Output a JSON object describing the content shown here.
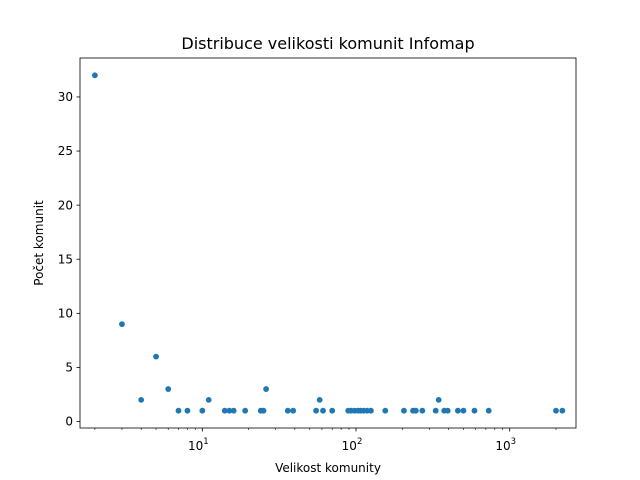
{
  "chart_data": {
    "type": "scatter",
    "title": "Distribuce velikosti komunit Infomap",
    "xlabel": "Velikost komunity",
    "ylabel": "Počet komunit",
    "xscale": "log",
    "xlim": [
      1.6,
      2700
    ],
    "ylim": [
      -0.6,
      33.6
    ],
    "yticks": [
      0,
      5,
      10,
      15,
      20,
      25,
      30
    ],
    "xticks": [
      {
        "value": 10,
        "base": "10",
        "exp": "1"
      },
      {
        "value": 100,
        "base": "10",
        "exp": "2"
      },
      {
        "value": 1000,
        "base": "10",
        "exp": "3"
      }
    ],
    "grid": false,
    "legend": "none",
    "marker_color": "#1f77b4",
    "points": [
      {
        "x": 2,
        "y": 32
      },
      {
        "x": 3,
        "y": 9
      },
      {
        "x": 4,
        "y": 2
      },
      {
        "x": 5,
        "y": 6
      },
      {
        "x": 6,
        "y": 3
      },
      {
        "x": 7,
        "y": 1
      },
      {
        "x": 8,
        "y": 1
      },
      {
        "x": 10,
        "y": 1
      },
      {
        "x": 11,
        "y": 2
      },
      {
        "x": 14,
        "y": 1
      },
      {
        "x": 15,
        "y": 1
      },
      {
        "x": 16,
        "y": 1
      },
      {
        "x": 19,
        "y": 1
      },
      {
        "x": 24,
        "y": 1
      },
      {
        "x": 25,
        "y": 1
      },
      {
        "x": 26,
        "y": 3
      },
      {
        "x": 36,
        "y": 1
      },
      {
        "x": 39,
        "y": 1
      },
      {
        "x": 55,
        "y": 1
      },
      {
        "x": 58,
        "y": 2
      },
      {
        "x": 61,
        "y": 1
      },
      {
        "x": 70,
        "y": 1
      },
      {
        "x": 89,
        "y": 1
      },
      {
        "x": 93,
        "y": 1
      },
      {
        "x": 98,
        "y": 1
      },
      {
        "x": 103,
        "y": 1
      },
      {
        "x": 107,
        "y": 1
      },
      {
        "x": 112,
        "y": 1
      },
      {
        "x": 118,
        "y": 1
      },
      {
        "x": 125,
        "y": 1
      },
      {
        "x": 155,
        "y": 1
      },
      {
        "x": 205,
        "y": 1
      },
      {
        "x": 235,
        "y": 1
      },
      {
        "x": 245,
        "y": 1
      },
      {
        "x": 270,
        "y": 1
      },
      {
        "x": 330,
        "y": 1
      },
      {
        "x": 345,
        "y": 2
      },
      {
        "x": 375,
        "y": 1
      },
      {
        "x": 395,
        "y": 1
      },
      {
        "x": 460,
        "y": 1
      },
      {
        "x": 500,
        "y": 1
      },
      {
        "x": 590,
        "y": 1
      },
      {
        "x": 730,
        "y": 1
      },
      {
        "x": 2000,
        "y": 1
      },
      {
        "x": 2200,
        "y": 1
      }
    ]
  }
}
